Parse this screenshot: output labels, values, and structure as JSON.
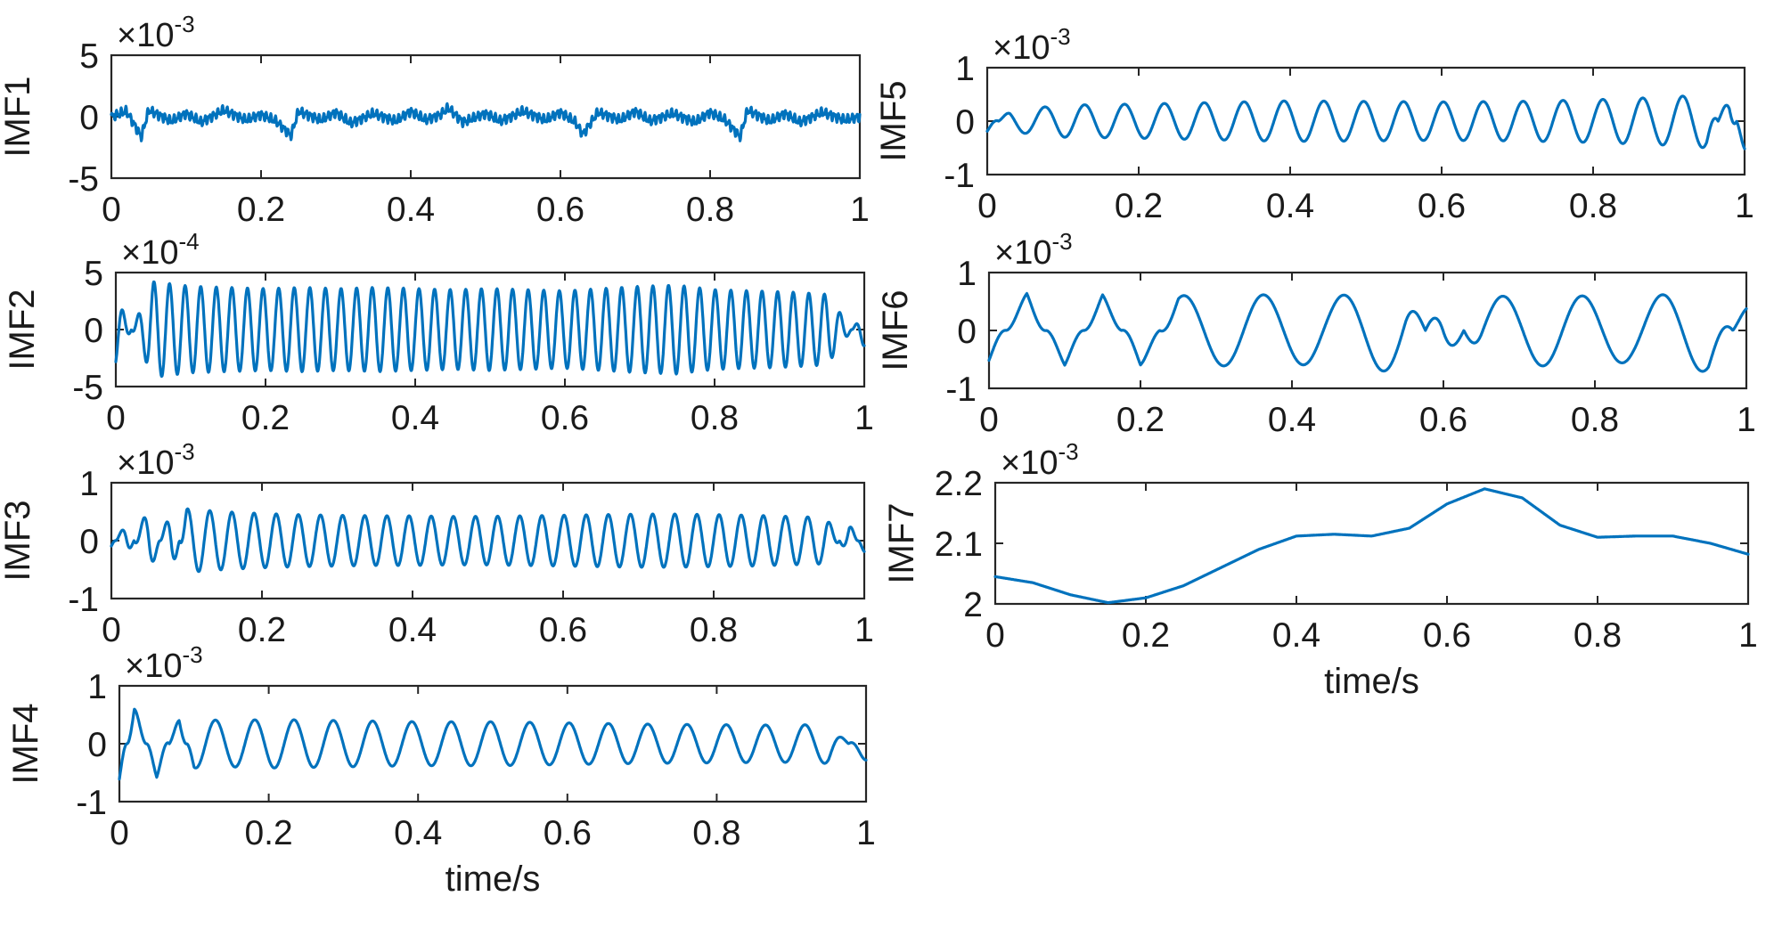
{
  "chart_data": [
    {
      "type": "line",
      "id": "imf1",
      "ylabel": "IMF1",
      "xlabel": "",
      "multiplier": {
        "base": "×10",
        "exp": "-3"
      },
      "xlim": [
        0,
        1
      ],
      "ylim": [
        -5,
        5
      ],
      "xticks": [
        "0",
        "0.2",
        "0.4",
        "0.6",
        "0.8",
        "1"
      ],
      "yticks": [
        "5",
        "0",
        "-5"
      ],
      "ytick_values": [
        5,
        0,
        -5
      ],
      "color": "#0072BD",
      "series": [
        {
          "x": [
            0,
            0.02,
            0.04,
            0.05,
            0.08,
            0.1,
            0.12,
            0.15,
            0.18,
            0.2,
            0.22,
            0.24,
            0.25,
            0.28,
            0.3,
            0.32,
            0.35,
            0.38,
            0.4,
            0.42,
            0.44,
            0.45,
            0.47,
            0.5,
            0.52,
            0.55,
            0.58,
            0.6,
            0.62,
            0.63,
            0.65,
            0.68,
            0.7,
            0.72,
            0.75,
            0.78,
            0.8,
            0.82,
            0.84,
            0.85,
            0.88,
            0.9,
            0.92,
            0.95,
            0.98,
            1
          ],
          "y": [
            0,
            0.5,
            -1.8,
            0.6,
            -0.4,
            0.3,
            -0.5,
            0.6,
            -0.3,
            0.2,
            -0.4,
            -1.7,
            0.5,
            -0.3,
            0.4,
            -0.6,
            0.3,
            -0.4,
            0.5,
            -0.3,
            0.2,
            0.8,
            -0.5,
            0.3,
            -0.4,
            0.5,
            -0.3,
            0.4,
            -0.5,
            -1.6,
            0.4,
            -0.3,
            0.5,
            -0.4,
            0.3,
            -0.5,
            0.4,
            -0.3,
            -1.8,
            0.6,
            -0.4,
            0.3,
            -0.5,
            0.4,
            -0.3,
            0
          ]
        }
      ]
    },
    {
      "type": "line",
      "id": "imf2",
      "ylabel": "IMF2",
      "xlabel": "",
      "multiplier": {
        "base": "×10",
        "exp": "-4"
      },
      "xlim": [
        0,
        1
      ],
      "ylim": [
        -5,
        5
      ],
      "xticks": [
        "0",
        "0.2",
        "0.4",
        "0.6",
        "0.8",
        "1"
      ],
      "yticks": [
        "5",
        "0",
        "-5"
      ],
      "ytick_values": [
        5,
        0,
        -5
      ],
      "color": "#0072BD",
      "series": [
        {
          "x": [
            0,
            0.05,
            0.1,
            0.15,
            0.2,
            0.25,
            0.3,
            0.35,
            0.4,
            0.45,
            0.5,
            0.55,
            0.6,
            0.65,
            0.7,
            0.75,
            0.8,
            0.85,
            0.9,
            0.95,
            1
          ],
          "y": [
            -3.0,
            4.2,
            3.8,
            3.7,
            3.6,
            3.7,
            3.6,
            3.7,
            3.6,
            3.5,
            3.6,
            3.5,
            3.4,
            3.6,
            3.8,
            3.9,
            3.5,
            3.4,
            3.3,
            3.1,
            -1.5
          ]
        }
      ]
    },
    {
      "type": "line",
      "id": "imf3",
      "ylabel": "IMF3",
      "xlabel": "",
      "multiplier": {
        "base": "×10",
        "exp": "-3"
      },
      "xlim": [
        0,
        1
      ],
      "ylim": [
        -1,
        1
      ],
      "xticks": [
        "0",
        "0.2",
        "0.4",
        "0.6",
        "0.8",
        "1"
      ],
      "yticks": [
        "1",
        "0",
        "-1"
      ],
      "ytick_values": [
        1,
        0,
        -1
      ],
      "color": "#0072BD",
      "series": [
        {
          "x": [
            0,
            0.02,
            0.05,
            0.08,
            0.1,
            0.15,
            0.2,
            0.25,
            0.3,
            0.35,
            0.4,
            0.45,
            0.5,
            0.55,
            0.6,
            0.65,
            0.7,
            0.75,
            0.8,
            0.85,
            0.9,
            0.95,
            0.98,
            1
          ],
          "y": [
            0.1,
            -0.3,
            0.6,
            -0.6,
            0.55,
            0.5,
            0.47,
            0.45,
            0.44,
            0.43,
            0.43,
            0.42,
            0.42,
            0.43,
            0.44,
            0.45,
            0.46,
            0.46,
            0.45,
            0.44,
            0.42,
            0.4,
            -0.3,
            0.2
          ]
        }
      ]
    },
    {
      "type": "line",
      "id": "imf4",
      "ylabel": "IMF4",
      "xlabel": "time/s",
      "multiplier": {
        "base": "×10",
        "exp": "-3"
      },
      "xlim": [
        0,
        1
      ],
      "ylim": [
        -1,
        1
      ],
      "xticks": [
        "0",
        "0.2",
        "0.4",
        "0.6",
        "0.8",
        "1"
      ],
      "yticks": [
        "1",
        "0",
        "-1"
      ],
      "ytick_values": [
        1,
        0,
        -1
      ],
      "color": "#0072BD",
      "series": [
        {
          "x": [
            0,
            0.02,
            0.05,
            0.08,
            0.1,
            0.15,
            0.2,
            0.3,
            0.4,
            0.5,
            0.6,
            0.7,
            0.8,
            0.9,
            0.95,
            1
          ],
          "y": [
            0.65,
            -0.65,
            0.58,
            -0.45,
            0.42,
            0.4,
            0.42,
            0.4,
            0.38,
            0.38,
            0.36,
            0.34,
            0.33,
            0.32,
            0.34,
            -0.3
          ]
        }
      ]
    },
    {
      "type": "line",
      "id": "imf5",
      "ylabel": "IMF5",
      "xlabel": "",
      "multiplier": {
        "base": "×10",
        "exp": "-3"
      },
      "xlim": [
        0,
        1
      ],
      "ylim": [
        -1,
        1
      ],
      "xticks": [
        "0",
        "0.2",
        "0.4",
        "0.6",
        "0.8",
        "1"
      ],
      "yticks": [
        "1",
        "0",
        "-1"
      ],
      "ytick_values": [
        1,
        0,
        -1
      ],
      "color": "#0072BD",
      "series": [
        {
          "x": [
            0,
            0.03,
            0.1,
            0.2,
            0.3,
            0.4,
            0.5,
            0.6,
            0.7,
            0.8,
            0.9,
            0.95,
            0.98,
            1
          ],
          "y": [
            -0.2,
            0.2,
            0.3,
            0.32,
            0.35,
            0.38,
            0.37,
            0.36,
            0.37,
            0.4,
            0.45,
            0.5,
            -0.5,
            0.55
          ]
        }
      ]
    },
    {
      "type": "line",
      "id": "imf6",
      "ylabel": "IMF6",
      "xlabel": "",
      "multiplier": {
        "base": "×10",
        "exp": "-3"
      },
      "xlim": [
        0,
        1
      ],
      "ylim": [
        -1,
        1
      ],
      "xticks": [
        "0",
        "0.2",
        "0.4",
        "0.6",
        "0.8",
        "1"
      ],
      "yticks": [
        "1",
        "0",
        "-1"
      ],
      "ytick_values": [
        1,
        0,
        -1
      ],
      "color": "#0072BD",
      "series": [
        {
          "x": [
            0,
            0.05,
            0.1,
            0.15,
            0.2,
            0.25,
            0.35,
            0.45,
            0.55,
            0.6,
            0.65,
            0.75,
            0.85,
            0.95,
            1
          ],
          "y": [
            -0.55,
            0.65,
            -0.6,
            0.62,
            -0.62,
            0.6,
            0.62,
            0.58,
            0.75,
            -0.68,
            0.58,
            0.62,
            0.55,
            0.72,
            -0.4
          ]
        }
      ]
    },
    {
      "type": "line",
      "id": "imf7",
      "ylabel": "IMF7",
      "xlabel": "time/s",
      "multiplier": {
        "base": "×10",
        "exp": "-3"
      },
      "xlim": [
        0,
        1
      ],
      "ylim": [
        2.0,
        2.2
      ],
      "xticks": [
        "0",
        "0.2",
        "0.4",
        "0.6",
        "0.8",
        "1"
      ],
      "yticks": [
        "2.2",
        "2.1",
        "2"
      ],
      "ytick_values": [
        2.2,
        2.1,
        2.0
      ],
      "color": "#0072BD",
      "series": [
        {
          "x": [
            0,
            0.05,
            0.1,
            0.15,
            0.2,
            0.25,
            0.3,
            0.35,
            0.4,
            0.45,
            0.5,
            0.55,
            0.6,
            0.65,
            0.7,
            0.75,
            0.8,
            0.85,
            0.9,
            0.95,
            1
          ],
          "y": [
            2.045,
            2.035,
            2.015,
            2.002,
            2.01,
            2.03,
            2.06,
            2.09,
            2.112,
            2.115,
            2.112,
            2.125,
            2.165,
            2.19,
            2.175,
            2.13,
            2.11,
            2.112,
            2.112,
            2.1,
            2.082
          ]
        }
      ]
    }
  ]
}
